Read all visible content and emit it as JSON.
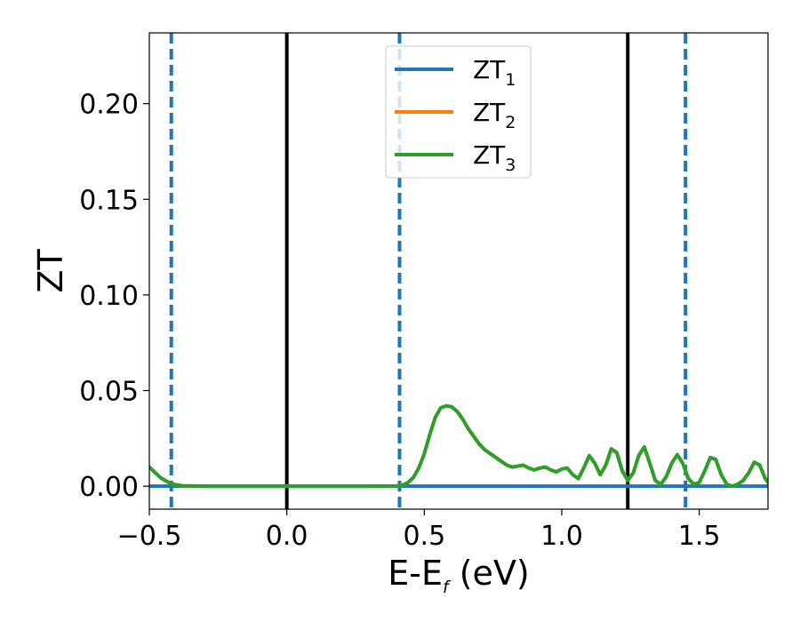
{
  "chart_data": {
    "type": "line",
    "xlabel": {
      "main": "E-E",
      "sub": "f",
      "suffix": " (eV)"
    },
    "ylabel": "ZT",
    "xlim": [
      -0.5,
      1.75
    ],
    "ylim": [
      -0.012,
      0.237
    ],
    "xticks": [
      -0.5,
      0.0,
      0.5,
      1.0,
      1.5
    ],
    "xtick_labels": [
      "−0.5",
      "0.0",
      "0.5",
      "1.0",
      "1.5"
    ],
    "yticks": [
      0.0,
      0.05,
      0.1,
      0.15,
      0.2
    ],
    "ytick_labels": [
      "0.00",
      "0.05",
      "0.10",
      "0.15",
      "0.20"
    ],
    "grid": false,
    "legend_position": "top-center",
    "vertical_lines": [
      {
        "x": -0.42,
        "style": "dashed",
        "color": "#1f77b4"
      },
      {
        "x": 0.0,
        "style": "solid",
        "color": "#000000"
      },
      {
        "x": 0.41,
        "style": "dashed",
        "color": "#1f77b4"
      },
      {
        "x": 1.24,
        "style": "solid",
        "color": "#000000"
      },
      {
        "x": 1.45,
        "style": "dashed",
        "color": "#1f77b4"
      }
    ],
    "series": [
      {
        "name": "ZT",
        "name_sub": "1",
        "color": "#1f77b4",
        "x": [
          -0.5,
          1.75
        ],
        "y": [
          0.0,
          0.0
        ]
      },
      {
        "name": "ZT",
        "name_sub": "2",
        "color": "#ff7f0e",
        "x": [
          -0.5,
          -0.46,
          -0.42,
          -0.38,
          -0.3,
          0.0,
          0.3,
          0.4,
          0.42,
          0.44,
          0.46,
          0.48,
          0.5,
          0.52,
          0.54,
          0.56,
          0.58,
          0.6,
          0.62,
          0.64,
          0.66,
          0.68,
          0.7,
          0.72,
          0.74,
          0.76,
          0.78,
          0.8,
          0.82,
          0.84,
          0.86,
          0.88,
          0.9,
          0.92,
          0.94,
          0.96,
          0.98,
          1.0,
          1.02,
          1.04,
          1.06,
          1.08,
          1.1,
          1.12,
          1.14,
          1.16,
          1.18,
          1.2,
          1.22,
          1.24,
          1.26,
          1.28,
          1.3,
          1.32,
          1.34,
          1.36,
          1.38,
          1.4,
          1.42,
          1.44,
          1.46,
          1.48,
          1.5,
          1.52,
          1.54,
          1.56,
          1.58,
          1.6,
          1.62,
          1.64,
          1.66,
          1.68,
          1.7,
          1.72,
          1.74,
          1.75
        ],
        "y": [
          0.01,
          0.0045,
          0.0012,
          0.0002,
          0.0,
          0.0,
          0.0,
          0.0001,
          0.0005,
          0.0018,
          0.0045,
          0.0095,
          0.017,
          0.027,
          0.036,
          0.041,
          0.042,
          0.0415,
          0.039,
          0.035,
          0.03,
          0.026,
          0.022,
          0.019,
          0.017,
          0.015,
          0.013,
          0.011,
          0.01,
          0.0105,
          0.011,
          0.0095,
          0.0085,
          0.0095,
          0.01,
          0.0085,
          0.0075,
          0.009,
          0.0095,
          0.006,
          0.004,
          0.0095,
          0.016,
          0.012,
          0.006,
          0.011,
          0.0195,
          0.0175,
          0.008,
          0.003,
          0.007,
          0.016,
          0.0205,
          0.012,
          0.003,
          0.001,
          0.005,
          0.012,
          0.0165,
          0.012,
          0.004,
          0.001,
          0.002,
          0.008,
          0.015,
          0.014,
          0.006,
          0.001,
          0.0,
          0.001,
          0.003,
          0.007,
          0.0125,
          0.011,
          0.004,
          0.002
        ]
      },
      {
        "name": "ZT",
        "name_sub": "3",
        "color": "#2ca02c",
        "x": [
          -0.5,
          -0.46,
          -0.42,
          -0.38,
          -0.3,
          0.0,
          0.3,
          0.4,
          0.42,
          0.44,
          0.46,
          0.48,
          0.5,
          0.52,
          0.54,
          0.56,
          0.58,
          0.6,
          0.62,
          0.64,
          0.66,
          0.68,
          0.7,
          0.72,
          0.74,
          0.76,
          0.78,
          0.8,
          0.82,
          0.84,
          0.86,
          0.88,
          0.9,
          0.92,
          0.94,
          0.96,
          0.98,
          1.0,
          1.02,
          1.04,
          1.06,
          1.08,
          1.1,
          1.12,
          1.14,
          1.16,
          1.18,
          1.2,
          1.22,
          1.24,
          1.26,
          1.28,
          1.3,
          1.32,
          1.34,
          1.36,
          1.38,
          1.4,
          1.42,
          1.44,
          1.46,
          1.48,
          1.5,
          1.52,
          1.54,
          1.56,
          1.58,
          1.6,
          1.62,
          1.64,
          1.66,
          1.68,
          1.7,
          1.72,
          1.74,
          1.75
        ],
        "y": [
          0.01,
          0.0045,
          0.0012,
          0.0002,
          0.0,
          0.0,
          0.0,
          0.0001,
          0.0005,
          0.0018,
          0.0045,
          0.0095,
          0.017,
          0.027,
          0.036,
          0.041,
          0.042,
          0.0415,
          0.039,
          0.035,
          0.03,
          0.026,
          0.022,
          0.019,
          0.017,
          0.015,
          0.013,
          0.011,
          0.01,
          0.0105,
          0.011,
          0.0095,
          0.0085,
          0.0095,
          0.01,
          0.0085,
          0.0075,
          0.009,
          0.0095,
          0.006,
          0.004,
          0.0095,
          0.016,
          0.012,
          0.006,
          0.011,
          0.0195,
          0.0175,
          0.008,
          0.003,
          0.007,
          0.016,
          0.0205,
          0.012,
          0.003,
          0.001,
          0.005,
          0.012,
          0.0165,
          0.012,
          0.004,
          0.001,
          0.002,
          0.008,
          0.015,
          0.014,
          0.006,
          0.001,
          0.0,
          0.001,
          0.003,
          0.007,
          0.0125,
          0.011,
          0.004,
          0.002
        ]
      }
    ]
  }
}
